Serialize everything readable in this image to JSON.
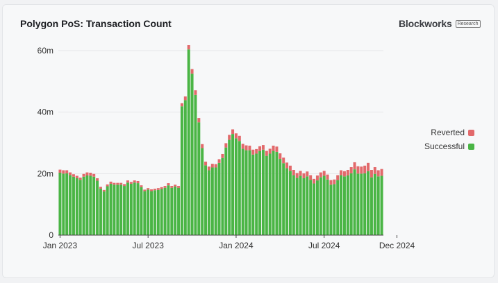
{
  "title": "Polygon PoS: Transaction Count",
  "brand": {
    "name": "Blockworks",
    "tag": "Research"
  },
  "colors": {
    "successful": "#4ab545",
    "reverted": "#e2696b",
    "grid": "#e5e6e9",
    "axis": "#444444"
  },
  "chart_data": {
    "type": "bar",
    "stacked": true,
    "title": "Polygon PoS: Transaction Count",
    "xlabel": "",
    "ylabel": "",
    "ylim": [
      0,
      60000000
    ],
    "yticks": [
      {
        "value": 0,
        "label": "0"
      },
      {
        "value": 20000000,
        "label": "20m"
      },
      {
        "value": 40000000,
        "label": "40m"
      },
      {
        "value": 60000000,
        "label": "60m"
      }
    ],
    "xticks": [
      {
        "week": 0,
        "label": "Jan 2023"
      },
      {
        "week": 26,
        "label": "Jul 2023"
      },
      {
        "week": 52,
        "label": "Jan 2024"
      },
      {
        "week": 78,
        "label": "Jul 2024"
      },
      {
        "week": 100,
        "label": "Dec 2024"
      }
    ],
    "legend": {
      "position": "right",
      "entries": [
        "Reverted",
        "Successful"
      ]
    },
    "grid": true,
    "series": [
      {
        "name": "Successful",
        "values": [
          20.3,
          20.0,
          20.1,
          19.5,
          19.0,
          18.5,
          18.0,
          19.0,
          19.4,
          19.3,
          19.0,
          17.7,
          15.1,
          14.2,
          15.9,
          16.7,
          16.4,
          16.4,
          16.4,
          16.0,
          17.1,
          16.7,
          17.1,
          16.9,
          15.6,
          14.3,
          14.8,
          14.3,
          14.6,
          14.7,
          15.0,
          15.4,
          16.2,
          15.4,
          15.8,
          15.4,
          41.9,
          43.9,
          60.4,
          52.5,
          45.6,
          36.7,
          28.3,
          22.7,
          21.1,
          22.0,
          22.0,
          23.5,
          25.1,
          28.5,
          31.0,
          32.9,
          31.5,
          30.6,
          28.1,
          27.6,
          27.6,
          26.2,
          26.5,
          27.3,
          27.8,
          25.8,
          26.5,
          27.4,
          27.1,
          24.8,
          23.4,
          21.8,
          20.9,
          19.5,
          18.6,
          19.3,
          18.5,
          19.1,
          18.0,
          16.8,
          17.8,
          18.8,
          19.3,
          18.1,
          16.4,
          16.6,
          17.9,
          19.5,
          19.1,
          19.4,
          20.1,
          21.4,
          20.0,
          20.0,
          20.1,
          20.8,
          18.8,
          19.9,
          19.1,
          19.3
        ],
        "scale_note": "millions"
      },
      {
        "name": "Reverted",
        "values": [
          1.0,
          1.1,
          1.0,
          0.9,
          0.8,
          0.8,
          0.7,
          0.9,
          1.0,
          1.0,
          0.9,
          0.8,
          0.6,
          0.5,
          0.6,
          0.7,
          0.6,
          0.6,
          0.6,
          0.6,
          0.7,
          0.6,
          0.7,
          0.7,
          0.6,
          0.5,
          0.5,
          0.6,
          0.5,
          0.6,
          0.6,
          0.6,
          0.7,
          0.6,
          0.6,
          0.6,
          1.0,
          1.2,
          1.4,
          1.5,
          1.5,
          1.4,
          1.3,
          1.2,
          1.2,
          1.2,
          1.1,
          1.2,
          1.3,
          1.4,
          1.6,
          1.5,
          1.6,
          1.7,
          1.6,
          1.6,
          1.5,
          1.6,
          1.5,
          1.6,
          1.5,
          1.6,
          1.6,
          1.7,
          1.7,
          1.8,
          1.8,
          1.8,
          1.7,
          1.7,
          1.6,
          1.6,
          1.6,
          1.6,
          1.5,
          1.5,
          1.6,
          1.6,
          1.6,
          1.6,
          1.5,
          1.5,
          1.6,
          1.6,
          1.7,
          1.8,
          2.0,
          2.3,
          2.4,
          2.3,
          2.5,
          2.7,
          2.4,
          2.2,
          2.0,
          2.2
        ],
        "scale_note": "millions"
      }
    ]
  }
}
